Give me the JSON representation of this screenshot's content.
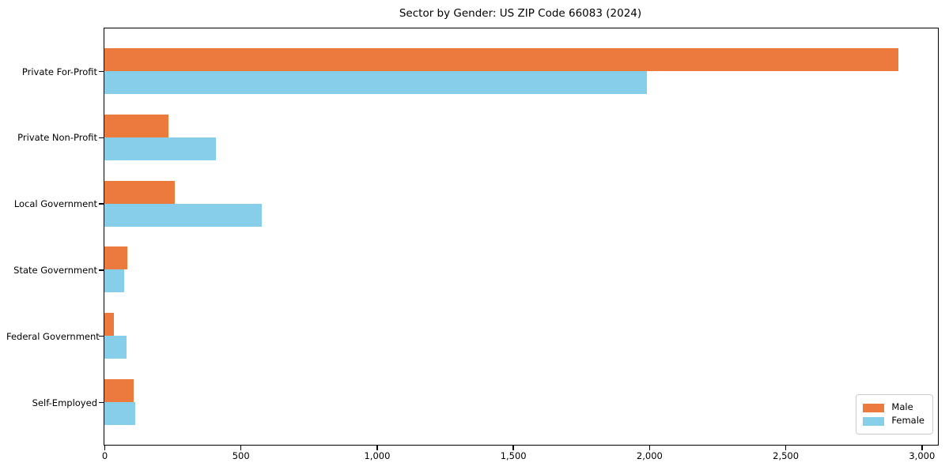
{
  "title": "Sector by Gender: US ZIP Code 66083 (2024)",
  "chart_data": {
    "type": "bar",
    "orientation": "horizontal",
    "title": "Sector by Gender: US ZIP Code 66083 (2024)",
    "categories": [
      "Private For-Profit",
      "Private Non-Profit",
      "Local Government",
      "State Government",
      "Federal Government",
      "Self-Employed"
    ],
    "series": [
      {
        "name": "Male",
        "color": "#ec7a3c",
        "values": [
          2916,
          236,
          259,
          85,
          35,
          108
        ]
      },
      {
        "name": "Female",
        "color": "#87ceeb",
        "values": [
          1991,
          410,
          578,
          72,
          81,
          113
        ]
      }
    ],
    "xlabel": "",
    "ylabel": "",
    "xlim": [
      0,
      3060
    ],
    "xticks": [
      0,
      500,
      1000,
      1500,
      2000,
      2500,
      3000
    ],
    "xtick_labels": [
      "0",
      "500",
      "1,000",
      "1,500",
      "2,000",
      "2,500",
      "3,000"
    ],
    "grid": false,
    "legend": {
      "position": "lower right",
      "entries": [
        "Male",
        "Female"
      ]
    }
  },
  "colors": {
    "male": "#ec7a3c",
    "female": "#87ceeb",
    "spine": "#000000",
    "background": "#ffffff",
    "legend_border": "#cccccc"
  }
}
